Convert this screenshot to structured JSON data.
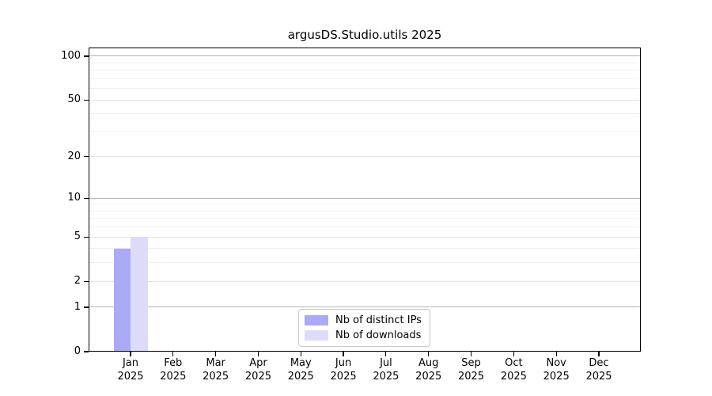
{
  "chart_data": {
    "type": "bar",
    "title": "argusDS.Studio.utils 2025",
    "year": "2025",
    "categories": [
      "Jan",
      "Feb",
      "Mar",
      "Apr",
      "May",
      "Jun",
      "Jul",
      "Aug",
      "Sep",
      "Oct",
      "Nov",
      "Dec"
    ],
    "series": [
      {
        "name": "Nb of distinct IPs",
        "color": "#aaaaf7",
        "values": [
          4,
          0,
          0,
          0,
          0,
          0,
          0,
          0,
          0,
          0,
          0,
          0
        ]
      },
      {
        "name": "Nb of downloads",
        "color": "#dcdcf9",
        "values": [
          5,
          0,
          0,
          0,
          0,
          0,
          0,
          0,
          0,
          0,
          0,
          0
        ]
      }
    ],
    "xlabel": "",
    "ylabel": "",
    "yscale": "log1p",
    "ylim": [
      0,
      114.6
    ],
    "y_ticks": [
      0,
      1,
      2,
      5,
      10,
      20,
      50,
      100
    ],
    "y_ticks_emphasis": [
      1,
      10,
      100
    ],
    "y_minor_ticks": [
      3,
      4,
      6,
      7,
      8,
      9,
      30,
      40,
      60,
      70,
      80,
      90
    ],
    "grid": "horizontal",
    "legend_position": "bottom-center",
    "grid_colors": {
      "emphasis": "#b3b3b3",
      "major": "#e3e3e3",
      "minor": "#efefef"
    },
    "axis_color": "#000000",
    "background_color": "#ffffff"
  }
}
